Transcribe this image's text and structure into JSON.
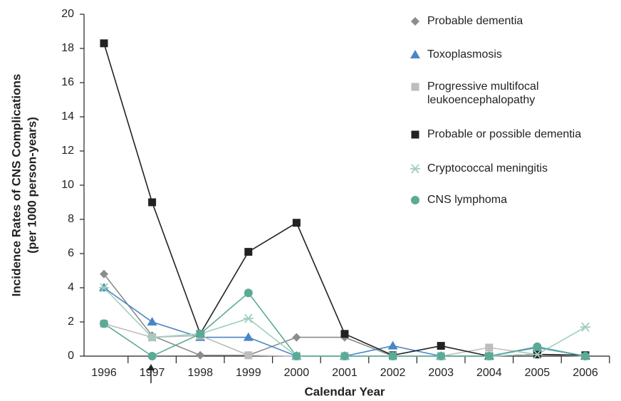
{
  "chart_data": {
    "type": "line",
    "y_label": [
      "Incidence Rates of CNS Complications",
      "(per 1000 person-years)"
    ],
    "x_label": "Calendar Year",
    "categories": [
      "1996",
      "1997",
      "1998",
      "1999",
      "2000",
      "2001",
      "2002",
      "2003",
      "2004",
      "2005",
      "2006"
    ],
    "ylim": [
      0,
      20
    ],
    "yticks": [
      0,
      2,
      4,
      6,
      8,
      10,
      12,
      14,
      16,
      18,
      20
    ],
    "series": [
      {
        "name": "Probable dementia",
        "color": "#8c8c8c",
        "marker": "diamond",
        "values": [
          4.8,
          1.2,
          0.05,
          0.05,
          1.1,
          1.1,
          0,
          0,
          0,
          0.1,
          0.05
        ]
      },
      {
        "name": "Toxoplasmosis",
        "color": "#4a86c5",
        "marker": "triangle",
        "values": [
          4.0,
          2.0,
          1.1,
          1.1,
          0,
          0,
          0.6,
          0,
          0,
          0.5,
          0
        ]
      },
      {
        "name": "Progressive multifocal leukoencephalopathy",
        "color": "#bdbdbd",
        "marker": "square",
        "values": [
          1.9,
          1.1,
          1.2,
          0.05,
          0,
          0,
          0,
          0,
          0.5,
          0.1,
          0
        ]
      },
      {
        "name": "Probable or possible dementia",
        "color": "#222222",
        "marker": "square",
        "values": [
          18.3,
          9.0,
          1.3,
          6.1,
          7.8,
          1.3,
          0.05,
          0.6,
          0,
          0.1,
          0.05
        ]
      },
      {
        "name": "Cryptococcal meningitis",
        "color": "#9fd0bb",
        "marker": "asterisk",
        "values": [
          4.0,
          1.1,
          1.3,
          2.2,
          0,
          0,
          0,
          0,
          0,
          0.1,
          1.7
        ]
      },
      {
        "name": "CNS lymphoma",
        "color": "#5aab95",
        "marker": "circle",
        "values": [
          1.9,
          0,
          1.3,
          3.7,
          0,
          0,
          0,
          0,
          0,
          0.55,
          0
        ]
      }
    ]
  }
}
